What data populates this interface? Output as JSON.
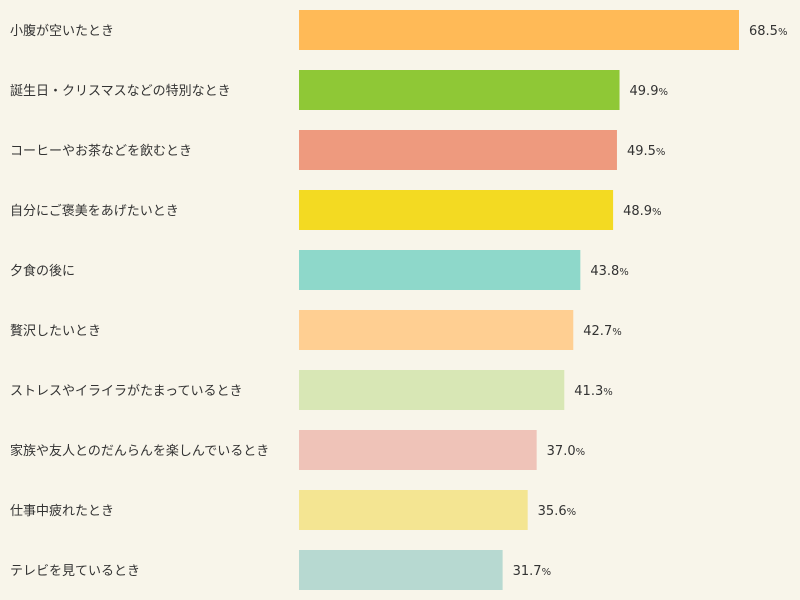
{
  "chart_data": {
    "type": "bar",
    "orientation": "horizontal",
    "unit": "%",
    "xlim": [
      0,
      100
    ],
    "grid": false,
    "legend": "none",
    "categories": [
      "小腹が空いたとき",
      "誕生日・クリスマスなどの特別なとき",
      "コーヒーやお茶などを飲むとき",
      "自分にご褒美をあげたいとき",
      "夕食の後に",
      "贅沢したいとき",
      "ストレスやイライラがたまっているとき",
      "家族や友人とのだんらんを楽しんでいるとき",
      "仕事中疲れたとき",
      "テレビを見ているとき"
    ],
    "values": [
      68.5,
      49.9,
      49.5,
      48.9,
      43.8,
      42.7,
      41.3,
      37.0,
      35.6,
      31.7
    ],
    "value_labels": [
      "68.5",
      "49.9",
      "49.5",
      "48.9",
      "43.8",
      "42.7",
      "41.3",
      "37.0",
      "35.6",
      "31.7"
    ],
    "colors": [
      "#ffba57",
      "#8fc836",
      "#ee9a7e",
      "#f3da22",
      "#8ed8ca",
      "#ffcf92",
      "#d8e7b5",
      "#efc3b8",
      "#f4e592",
      "#b7d9d1"
    ]
  }
}
